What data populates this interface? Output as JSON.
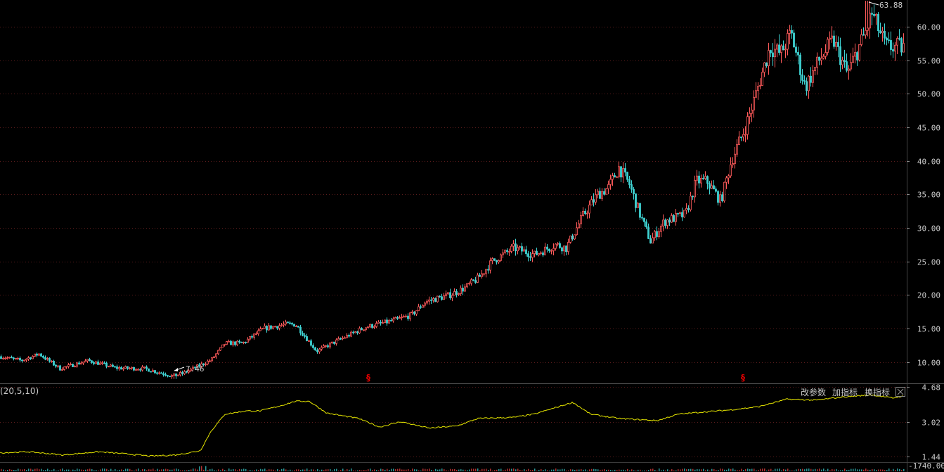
{
  "colors": {
    "up": "#ff5a5a",
    "down": "#3fd3d3",
    "indicator_line": "#e6e600",
    "grid": "#5a1c1c",
    "marker": "#e00000",
    "divider": "#555555"
  },
  "main_chart": {
    "y_ticks": [
      "60.00",
      "55.00",
      "50.00",
      "45.00",
      "40.00",
      "35.00",
      "30.00",
      "25.00",
      "20.00",
      "15.00",
      "10.00"
    ],
    "ylim": [
      6.8,
      64.0
    ],
    "high_label": "63.88",
    "low_label": "7.46",
    "markers": [
      "§",
      "§"
    ]
  },
  "indicator_panel": {
    "params_label": "(20,5,10)",
    "buttons": {
      "modify_params": "改参数",
      "add_indicator": "加指标",
      "switch_indicator": "换指标"
    },
    "close_icon": "close-icon",
    "y_ticks": [
      "4.68",
      "3.02",
      "1.44"
    ],
    "ylim": [
      1.2,
      4.8
    ]
  },
  "volume_panel": {
    "y_tick": "-1740.00"
  },
  "chart_data": {
    "type": "candlestick",
    "anchors_price": [
      [
        0,
        10.8
      ],
      [
        30,
        10.2
      ],
      [
        55,
        11.2
      ],
      [
        85,
        9.0
      ],
      [
        125,
        10.2
      ],
      [
        165,
        9.1
      ],
      [
        205,
        9.0
      ],
      [
        245,
        7.9
      ],
      [
        260,
        8.3
      ],
      [
        300,
        10.3
      ],
      [
        320,
        12.8
      ],
      [
        345,
        12.8
      ],
      [
        375,
        15.0
      ],
      [
        405,
        15.6
      ],
      [
        420,
        15.6
      ],
      [
        450,
        11.6
      ],
      [
        480,
        13.2
      ],
      [
        520,
        15.2
      ],
      [
        560,
        16.2
      ],
      [
        585,
        17.0
      ],
      [
        605,
        19.0
      ],
      [
        640,
        20.0
      ],
      [
        660,
        21.0
      ],
      [
        680,
        22.5
      ],
      [
        700,
        25.0
      ],
      [
        730,
        27.0
      ],
      [
        760,
        26.0
      ],
      [
        790,
        27.5
      ],
      [
        805,
        27.0
      ],
      [
        830,
        32.0
      ],
      [
        850,
        35.0
      ],
      [
        865,
        36.0
      ],
      [
        880,
        39.0
      ],
      [
        895,
        36.5
      ],
      [
        910,
        32.0
      ],
      [
        925,
        28.0
      ],
      [
        945,
        31.0
      ],
      [
        975,
        32.0
      ],
      [
        990,
        37.0
      ],
      [
        1005,
        37.0
      ],
      [
        1025,
        34.0
      ],
      [
        1040,
        40.0
      ],
      [
        1060,
        45.0
      ],
      [
        1075,
        50.0
      ],
      [
        1095,
        57.0
      ],
      [
        1110,
        56.0
      ],
      [
        1125,
        59.0
      ],
      [
        1145,
        51.0
      ],
      [
        1165,
        55.0
      ],
      [
        1185,
        58.0
      ],
      [
        1205,
        53.0
      ],
      [
        1230,
        59.0
      ],
      [
        1240,
        62.0
      ],
      [
        1260,
        57.0
      ],
      [
        1285,
        57.0
      ]
    ],
    "anchors_indicator": [
      [
        0,
        1.6
      ],
      [
        40,
        1.65
      ],
      [
        90,
        1.5
      ],
      [
        140,
        1.65
      ],
      [
        180,
        1.55
      ],
      [
        215,
        1.45
      ],
      [
        250,
        1.5
      ],
      [
        285,
        1.7
      ],
      [
        300,
        2.6
      ],
      [
        320,
        3.4
      ],
      [
        350,
        3.55
      ],
      [
        370,
        3.55
      ],
      [
        400,
        3.8
      ],
      [
        420,
        4.0
      ],
      [
        440,
        4.0
      ],
      [
        465,
        3.45
      ],
      [
        510,
        3.2
      ],
      [
        540,
        2.8
      ],
      [
        570,
        3.05
      ],
      [
        610,
        2.75
      ],
      [
        650,
        2.85
      ],
      [
        680,
        3.2
      ],
      [
        730,
        3.25
      ],
      [
        760,
        3.4
      ],
      [
        815,
        3.95
      ],
      [
        840,
        3.4
      ],
      [
        880,
        3.2
      ],
      [
        935,
        3.1
      ],
      [
        965,
        3.4
      ],
      [
        1000,
        3.5
      ],
      [
        1040,
        3.6
      ],
      [
        1080,
        3.75
      ],
      [
        1120,
        4.1
      ],
      [
        1160,
        4.05
      ],
      [
        1200,
        4.2
      ],
      [
        1240,
        4.3
      ],
      [
        1270,
        4.15
      ],
      [
        1285,
        4.25
      ]
    ],
    "high": 63.88,
    "low": 7.46
  }
}
